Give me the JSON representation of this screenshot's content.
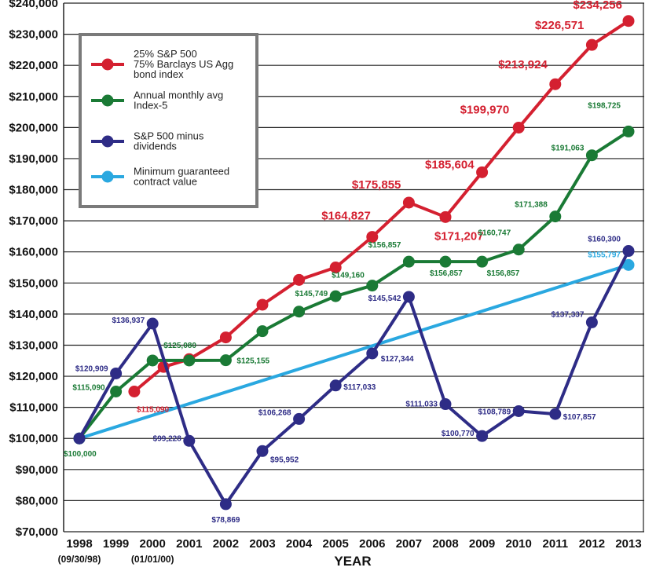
{
  "chart_data": {
    "type": "line",
    "xlabel": "YEAR",
    "ylabel": "",
    "ylim": [
      70000,
      240000
    ],
    "yticks": [
      70000,
      80000,
      90000,
      100000,
      110000,
      120000,
      130000,
      140000,
      150000,
      160000,
      170000,
      180000,
      190000,
      200000,
      210000,
      220000,
      230000,
      240000
    ],
    "ytick_labels": [
      "$70,000",
      "$80,000",
      "$90,000",
      "$100,000",
      "$110,000",
      "$120,000",
      "$130,000",
      "$140,000",
      "$150,000",
      "$160,000",
      "$170,000",
      "$180,000",
      "$190,000",
      "$200,000",
      "$210,000",
      "$220,000",
      "$230,000",
      "$240,000"
    ],
    "categories": [
      "1998",
      "1999",
      "2000",
      "2001",
      "2002",
      "2003",
      "2004",
      "2005",
      "2006",
      "2007",
      "2008",
      "2009",
      "2010",
      "2011",
      "2012",
      "2013"
    ],
    "x_notes": [
      {
        "category": "1998",
        "text": "(09/30/98)"
      },
      {
        "category": "2000",
        "text": "(01/01/00)"
      }
    ],
    "grid": true,
    "legend_position": "top-left",
    "series": [
      {
        "name": "25% S&P 500\n75% Barclays US Agg\nbond index",
        "color": "#d42030",
        "points": [
          {
            "x": 1999.5,
            "y": 115090
          },
          {
            "x": 2000.3,
            "y": 123000
          },
          {
            "x": 2001,
            "y": 125500
          },
          {
            "x": 2002,
            "y": 132500
          },
          {
            "x": 2003,
            "y": 143000
          },
          {
            "x": 2004,
            "y": 151000
          },
          {
            "x": 2005,
            "y": 155000
          },
          {
            "x": 2006,
            "y": 164827
          },
          {
            "x": 2007,
            "y": 175855
          },
          {
            "x": 2008,
            "y": 171207
          },
          {
            "x": 2009,
            "y": 185604
          },
          {
            "x": 2010,
            "y": 199970
          },
          {
            "x": 2011,
            "y": 213924
          },
          {
            "x": 2012,
            "y": 226571
          },
          {
            "x": 2013,
            "y": 234256
          }
        ],
        "labels": [
          {
            "index": 0,
            "text": "$115,090",
            "size": "small"
          },
          {
            "index": 7,
            "text": "$164,827",
            "size": "big"
          },
          {
            "index": 8,
            "text": "$175,855",
            "size": "big"
          },
          {
            "index": 9,
            "text": "$171,207",
            "size": "big"
          },
          {
            "index": 10,
            "text": "$185,604",
            "size": "big"
          },
          {
            "index": 11,
            "text": "$199,970",
            "size": "big"
          },
          {
            "index": 12,
            "text": "$213,924",
            "size": "big"
          },
          {
            "index": 13,
            "text": "$226,571",
            "size": "big"
          },
          {
            "index": 14,
            "text": "$234,256",
            "size": "big"
          }
        ]
      },
      {
        "name": "Annual monthly avg\nIndex-5",
        "color": "#1a7a35",
        "points": [
          {
            "x": 1998,
            "y": 100000
          },
          {
            "x": 1999,
            "y": 115090
          },
          {
            "x": 2000,
            "y": 125080
          },
          {
            "x": 2001,
            "y": 125080
          },
          {
            "x": 2002,
            "y": 125155
          },
          {
            "x": 2003,
            "y": 134500
          },
          {
            "x": 2004,
            "y": 140800
          },
          {
            "x": 2005,
            "y": 145749
          },
          {
            "x": 2006,
            "y": 149160
          },
          {
            "x": 2007,
            "y": 156857
          },
          {
            "x": 2008,
            "y": 156857
          },
          {
            "x": 2009,
            "y": 156857
          },
          {
            "x": 2010,
            "y": 160747
          },
          {
            "x": 2011,
            "y": 171388
          },
          {
            "x": 2012,
            "y": 191063
          },
          {
            "x": 2013,
            "y": 198725
          }
        ],
        "labels": [
          {
            "index": 0,
            "text": "$100,000",
            "size": "small"
          },
          {
            "index": 1,
            "text": "$115,090",
            "size": "small"
          },
          {
            "index": 2,
            "text": "$125,080",
            "size": "small"
          },
          {
            "index": 4,
            "text": "$125,155",
            "size": "small"
          },
          {
            "index": 7,
            "text": "$145,749",
            "size": "small"
          },
          {
            "index": 8,
            "text": "$149,160",
            "size": "small"
          },
          {
            "index": 9,
            "text": "$156,857",
            "size": "small"
          },
          {
            "index": 10,
            "text": "$156,857",
            "size": "small"
          },
          {
            "index": 11,
            "text": "$156,857",
            "size": "small"
          },
          {
            "index": 12,
            "text": "$160,747",
            "size": "small"
          },
          {
            "index": 13,
            "text": "$171,388",
            "size": "small"
          },
          {
            "index": 14,
            "text": "$191,063",
            "size": "small"
          },
          {
            "index": 15,
            "text": "$198,725",
            "size": "small"
          }
        ]
      },
      {
        "name": "S&P 500 minus\ndividends",
        "color": "#2e2c86",
        "points": [
          {
            "x": 1998,
            "y": 100000
          },
          {
            "x": 1999,
            "y": 120909
          },
          {
            "x": 2000,
            "y": 136937
          },
          {
            "x": 2001,
            "y": 99228
          },
          {
            "x": 2002,
            "y": 78869
          },
          {
            "x": 2003,
            "y": 95952
          },
          {
            "x": 2004,
            "y": 106268
          },
          {
            "x": 2005,
            "y": 117033
          },
          {
            "x": 2006,
            "y": 127344
          },
          {
            "x": 2007,
            "y": 145542
          },
          {
            "x": 2008,
            "y": 111033
          },
          {
            "x": 2009,
            "y": 100770
          },
          {
            "x": 2010,
            "y": 108789
          },
          {
            "x": 2011,
            "y": 107857
          },
          {
            "x": 2012,
            "y": 137337
          },
          {
            "x": 2013,
            "y": 160300
          }
        ],
        "labels": [
          {
            "index": 1,
            "text": "$120,909",
            "size": "small"
          },
          {
            "index": 2,
            "text": "$136,937",
            "size": "small"
          },
          {
            "index": 3,
            "text": "$99,228",
            "size": "small"
          },
          {
            "index": 4,
            "text": "$78,869",
            "size": "small"
          },
          {
            "index": 5,
            "text": "$95,952",
            "size": "small"
          },
          {
            "index": 6,
            "text": "$106,268",
            "size": "small"
          },
          {
            "index": 7,
            "text": "$117,033",
            "size": "small"
          },
          {
            "index": 8,
            "text": "$127,344",
            "size": "small"
          },
          {
            "index": 9,
            "text": "$145,542",
            "size": "small"
          },
          {
            "index": 10,
            "text": "$111,033",
            "size": "small"
          },
          {
            "index": 11,
            "text": "$100,770",
            "size": "small"
          },
          {
            "index": 12,
            "text": "$108,789",
            "size": "small"
          },
          {
            "index": 13,
            "text": "$107,857",
            "size": "small"
          },
          {
            "index": 14,
            "text": "$137,337",
            "size": "small"
          },
          {
            "index": 15,
            "text": "$160,300",
            "size": "small"
          }
        ]
      },
      {
        "name": "Minimum guaranteed\ncontract value",
        "color": "#2aa8e0",
        "points": [
          {
            "x": 1998,
            "y": 100000
          },
          {
            "x": 2013,
            "y": 155797
          }
        ],
        "labels": [
          {
            "index": 1,
            "text": "$155,797",
            "size": "small"
          }
        ]
      }
    ]
  }
}
